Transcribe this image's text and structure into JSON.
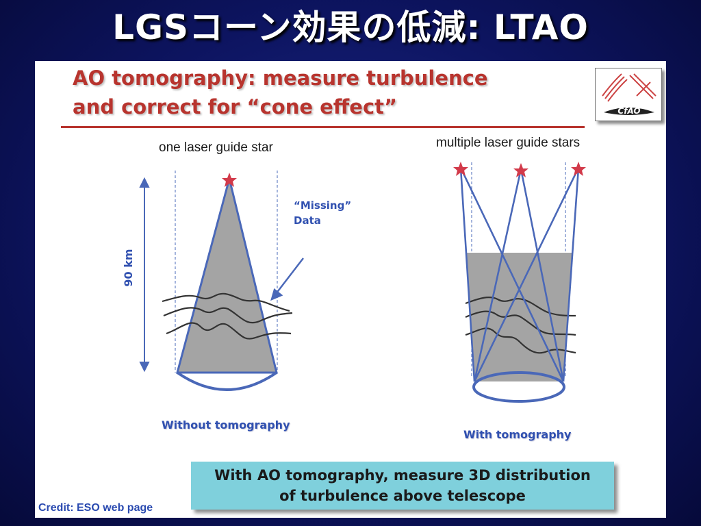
{
  "slide": {
    "title": "LGSコーン効果の低減: LTAO"
  },
  "panel": {
    "heading_line1": "AO tomography: measure turbulence",
    "heading_line2": "and correct for “cone effect”",
    "logo_text": "CfAO",
    "left_diagram": {
      "label": "one laser guide star",
      "missing_label_line1": "“Missing”",
      "missing_label_line2": "Data",
      "height_label": "90 km",
      "caption": "Without tomography"
    },
    "right_diagram": {
      "label": "multiple laser guide stars",
      "caption": "With tomography"
    },
    "summary_line1": "With AO tomography, measure 3D distribution",
    "summary_line2": "of turbulence above telescope",
    "credit": "Credit: ESO web page"
  },
  "colors": {
    "accent_red": "#b8342e",
    "beam_blue": "#4a68b8",
    "star_red": "#d23a4a",
    "volume_gray": "#a0a0a0",
    "summary_bg": "#7fd0dc"
  }
}
